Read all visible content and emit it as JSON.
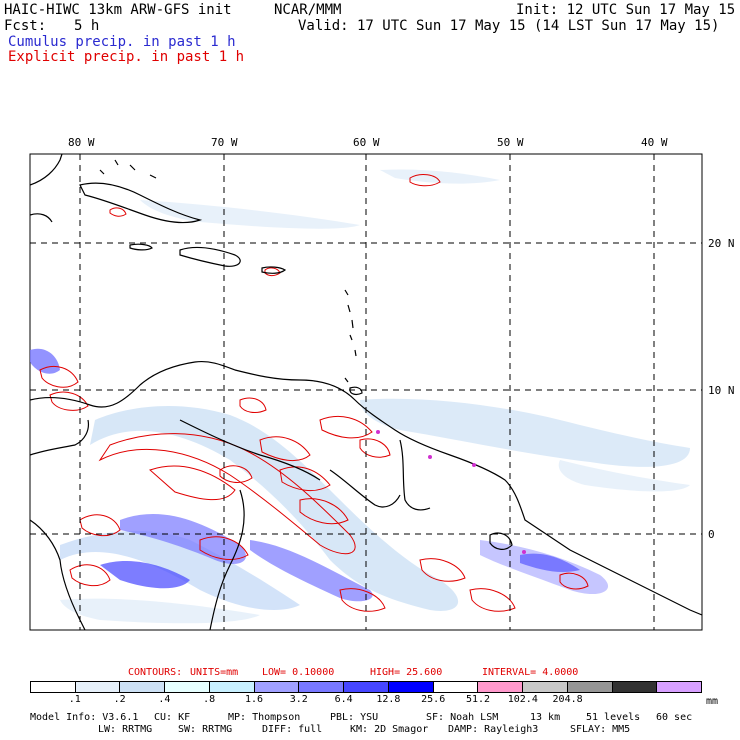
{
  "header": {
    "model_title": "HAIC-HIWC 13km ARW-GFS init",
    "org": "NCAR/MMM",
    "init": "Init: 12 UTC Sun 17 May 15",
    "fcst_label": "Fcst:",
    "fcst_value": "5 h",
    "valid": "Valid: 17 UTC Sun 17 May 15 (14 LST Sun 17 May 15)",
    "cumulus": "Cumulus precip. in past 1 h",
    "explicit": "Explicit precip. in past 1 h"
  },
  "map": {
    "lon_labels": [
      "80 W",
      "70 W",
      "60 W",
      "50 W",
      "40 W"
    ],
    "lat_labels": [
      "20 N",
      "10 N",
      "0"
    ],
    "colors": {
      "cumulus": "#3c3ce6",
      "explicit": "#e00000",
      "land": "#000000",
      "grid": "#000000",
      "airport_labels": "#d030d0"
    }
  },
  "contour_info": {
    "contours": "CONTOURS:",
    "units": "UNITS=mm",
    "low": "LOW= 0.10000",
    "high": "HIGH= 25.600",
    "interval": "INTERVAL= 4.0000"
  },
  "colorbar": {
    "colors": [
      "#ffffff",
      "#e6f0fa",
      "#cde1f5",
      "#e6ffff",
      "#c8f0ff",
      "#a0a0ff",
      "#7878ff",
      "#4646ff",
      "#0000ff",
      "#ffffff",
      "#ff99cc",
      "#c8c8c8",
      "#969696",
      "#323232",
      "#d7a0ff"
    ],
    "labels": [
      ".1",
      ".2",
      ".4",
      ".8",
      "1.6",
      "3.2",
      "6.4",
      "12.8",
      "25.6",
      "51.2",
      "102.4",
      "204.8"
    ],
    "units": "mm"
  },
  "footer": {
    "model_info": "Model Info: V3.6.1",
    "cu": "CU: KF",
    "mp": "MP: Thompson",
    "pbl": "PBL: YSU",
    "sf": "SF: Noah LSM",
    "res": "13 km",
    "levels": "51 levels",
    "dt": "60 sec",
    "lw": "LW: RRTMG",
    "sw": "SW: RRTMG",
    "diff": "DIFF: full",
    "km": "KM: 2D Smagor",
    "damp": "DAMP: Rayleigh3",
    "sflay": "SFLAY: MM5"
  }
}
